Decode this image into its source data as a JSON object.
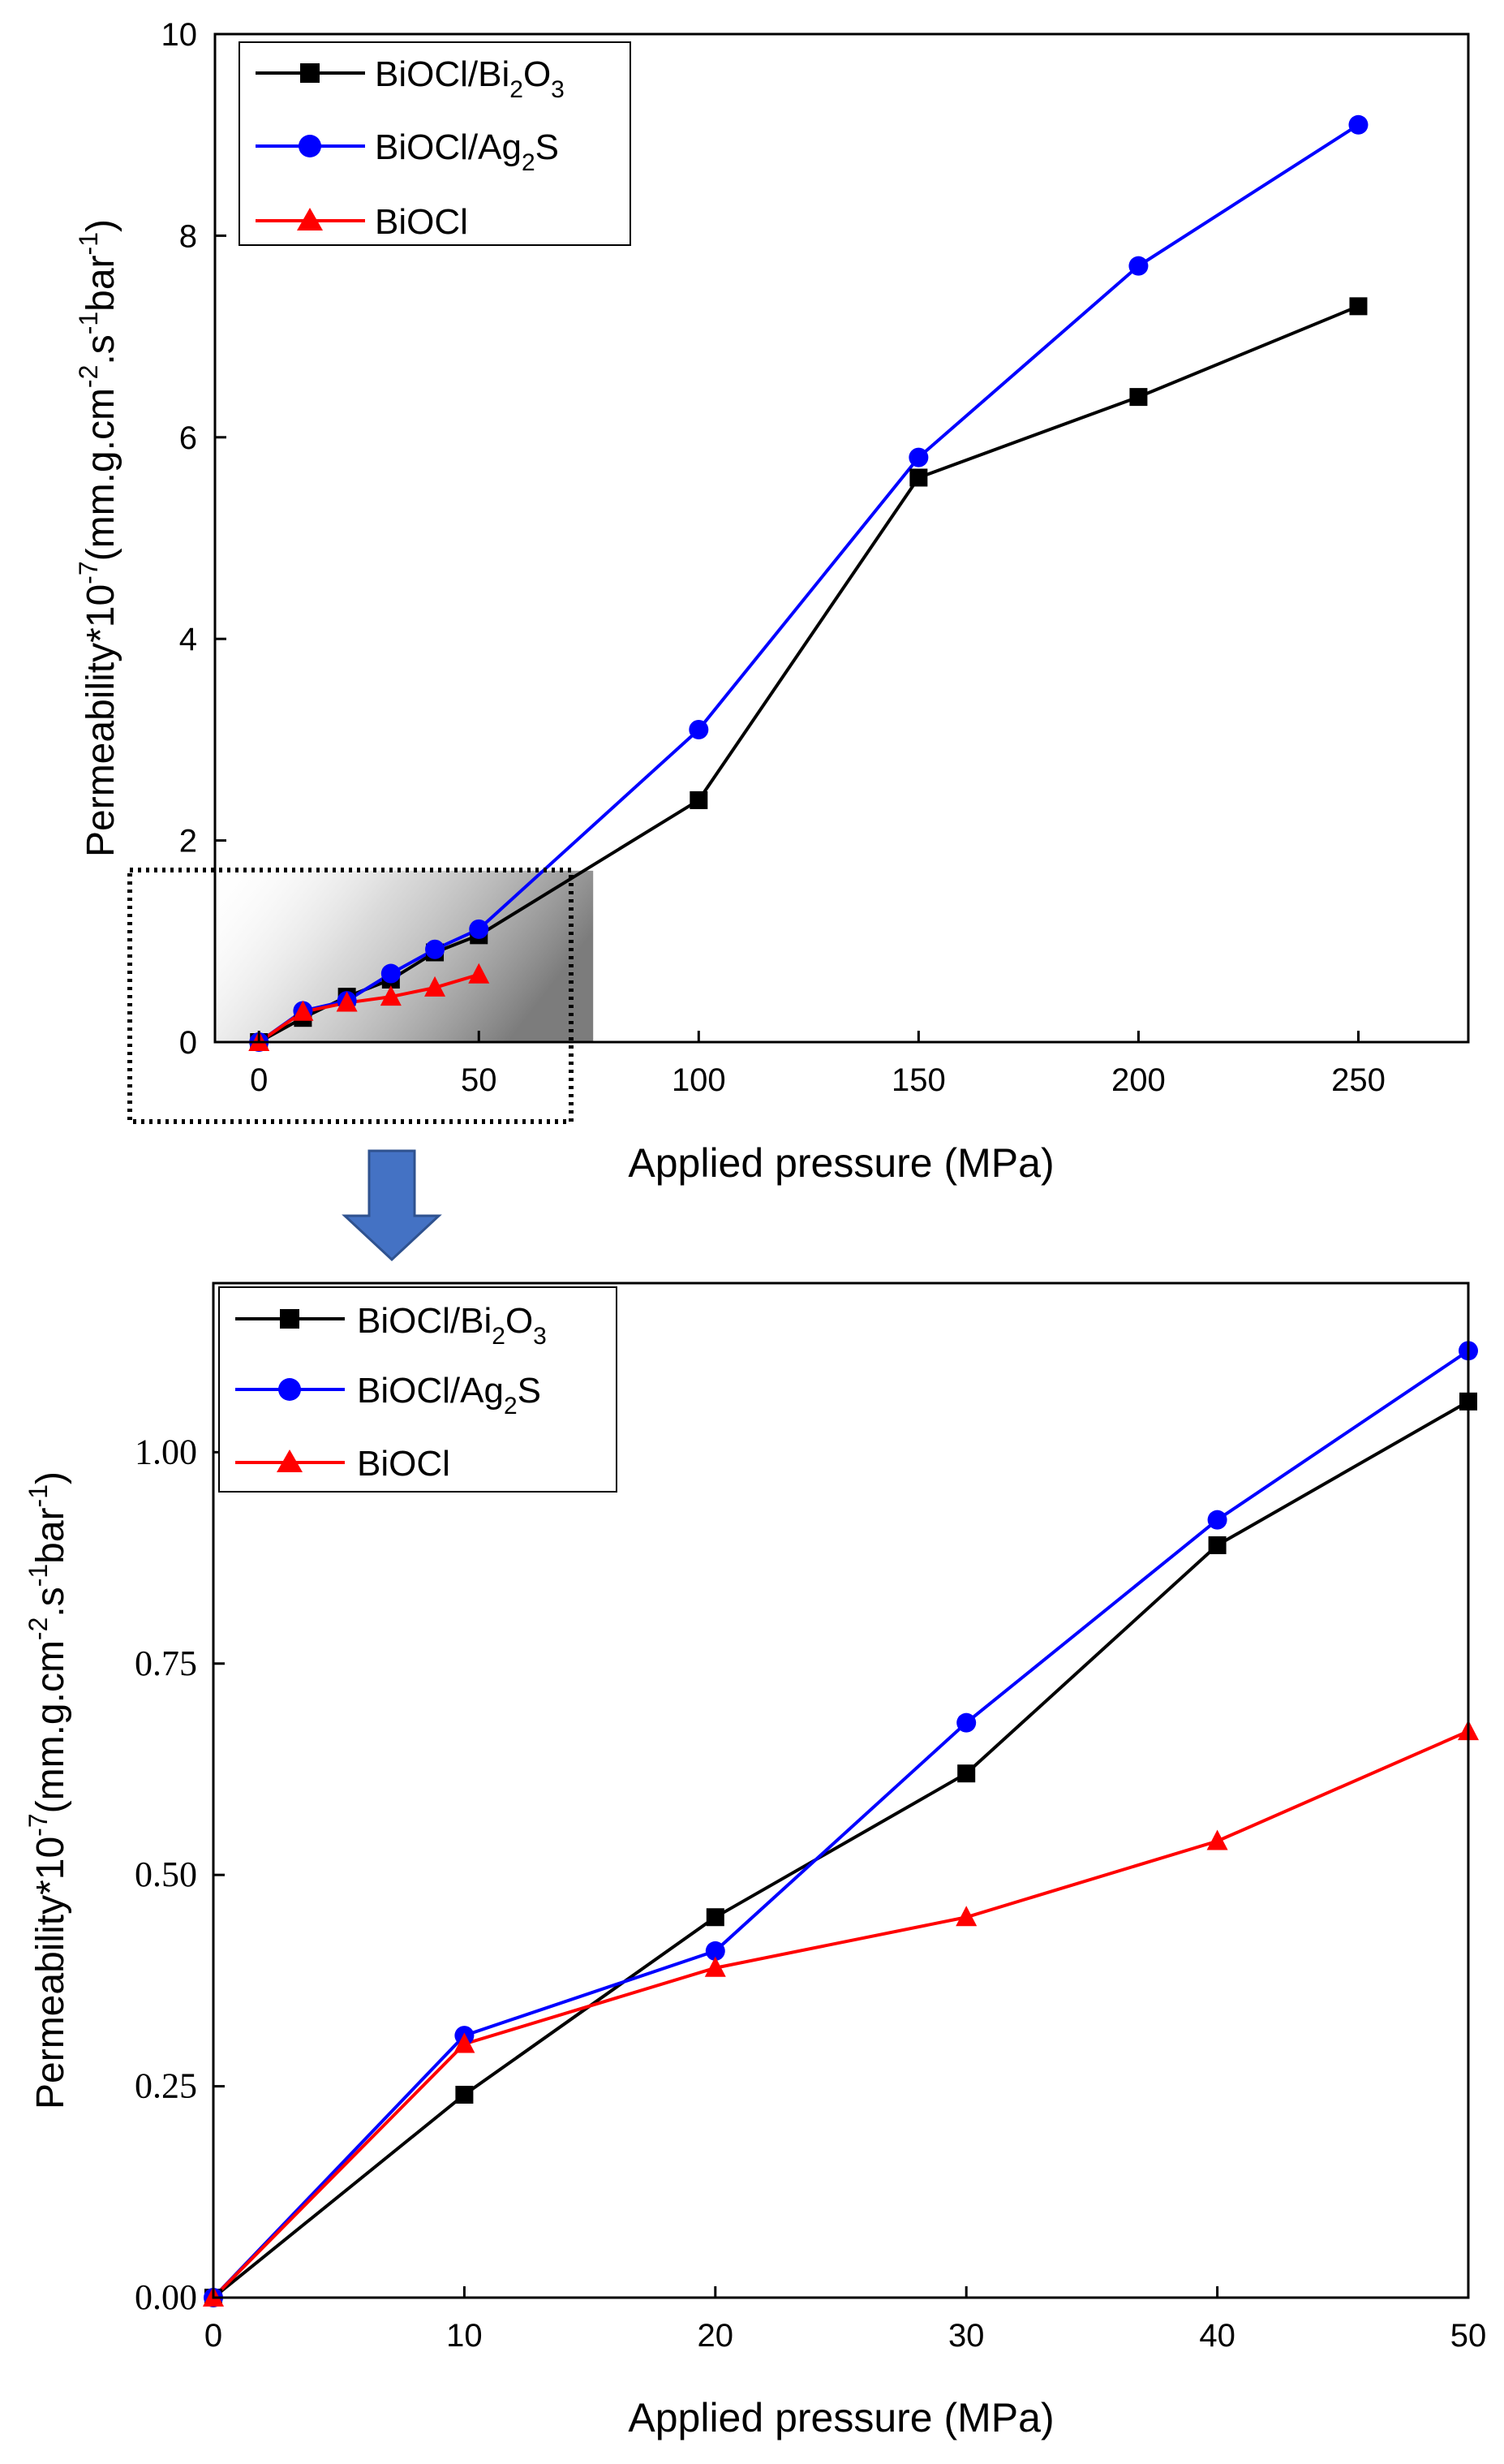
{
  "chart_data": [
    {
      "id": "overview",
      "type": "line",
      "xlabel": "Applied pressure (MPa)",
      "ylabel": {
        "base": "Permeability*10",
        "exp1": "-7",
        "mid1": "(mm.g.cm",
        "exp2": "-2",
        "mid2": ".s",
        "exp3": "-1",
        "mid3": "bar",
        "exp4": "-1",
        "end": ")"
      },
      "xlim": [
        -10,
        275
      ],
      "ylim": [
        0,
        10
      ],
      "xticks": [
        0,
        50,
        100,
        150,
        200,
        250
      ],
      "xtick_labels": [
        "0",
        "50",
        "100",
        "150",
        "200",
        "250"
      ],
      "yticks": [
        0,
        2,
        4,
        6,
        8,
        10
      ],
      "ytick_labels": [
        "0",
        "2",
        "4",
        "6",
        "8",
        "10"
      ],
      "legend_position": "top-left",
      "zoom_region": {
        "x": [
          -22,
          76
        ],
        "y": [
          -0.8,
          1.7
        ]
      },
      "series": [
        {
          "name": "BiOCl/Bi2O3",
          "label_parts": [
            "BiOCl/Bi",
            "2",
            "O",
            "3"
          ],
          "color": "#000000",
          "marker": "square",
          "x": [
            0,
            10,
            20,
            30,
            40,
            50,
            100,
            150,
            200,
            250
          ],
          "y": [
            0,
            0.24,
            0.45,
            0.62,
            0.89,
            1.06,
            2.4,
            5.6,
            6.4,
            7.3
          ]
        },
        {
          "name": "BiOCl/Ag2S",
          "label_parts": [
            "BiOCl/Ag",
            "2",
            "S",
            ""
          ],
          "color": "#0000ff",
          "marker": "circle",
          "x": [
            0,
            10,
            20,
            30,
            40,
            50,
            100,
            150,
            200,
            250
          ],
          "y": [
            0,
            0.31,
            0.41,
            0.68,
            0.92,
            1.12,
            3.1,
            5.8,
            7.7,
            9.1
          ]
        },
        {
          "name": "BiOCl",
          "label_parts": [
            "BiOCl",
            "",
            "",
            ""
          ],
          "color": "#ff0000",
          "marker": "triangle",
          "x": [
            0,
            10,
            20,
            30,
            40,
            50
          ],
          "y": [
            0,
            0.3,
            0.39,
            0.45,
            0.54,
            0.67
          ]
        }
      ]
    },
    {
      "id": "zoom",
      "type": "line",
      "xlabel": "Applied pressure (MPa)",
      "ylabel": {
        "base": "Permeability*10",
        "exp1": "-7",
        "mid1": "(mm.g.cm",
        "exp2": "-2",
        "mid2": ".s",
        "exp3": "-1",
        "mid3": "bar",
        "exp4": "-1",
        "end": ")"
      },
      "xlim": [
        0,
        50
      ],
      "ylim": [
        0,
        1.2
      ],
      "xticks": [
        0,
        10,
        20,
        30,
        40,
        50
      ],
      "xtick_labels": [
        "0",
        "10",
        "20",
        "30",
        "40",
        "50"
      ],
      "yticks": [
        0,
        0.25,
        0.5,
        0.75,
        1.0
      ],
      "ytick_labels": [
        "0.00",
        "0.25",
        "0.50",
        "0.75",
        "1.00"
      ],
      "legend_position": "top-left",
      "series": [
        {
          "name": "BiOCl/Bi2O3",
          "label_parts": [
            "BiOCl/Bi",
            "2",
            "O",
            "3"
          ],
          "color": "#000000",
          "marker": "square",
          "x": [
            0,
            10,
            20,
            30,
            40,
            50
          ],
          "y": [
            0,
            0.24,
            0.45,
            0.62,
            0.89,
            1.06
          ]
        },
        {
          "name": "BiOCl/Ag2S",
          "label_parts": [
            "BiOCl/Ag",
            "2",
            "S",
            ""
          ],
          "color": "#0000ff",
          "marker": "circle",
          "x": [
            0,
            10,
            20,
            30,
            40,
            50
          ],
          "y": [
            0,
            0.31,
            0.41,
            0.68,
            0.92,
            1.12
          ]
        },
        {
          "name": "BiOCl",
          "label_parts": [
            "BiOCl",
            "",
            "",
            ""
          ],
          "color": "#ff0000",
          "marker": "triangle",
          "x": [
            0,
            10,
            20,
            30,
            40,
            50
          ],
          "y": [
            0,
            0.3,
            0.39,
            0.45,
            0.54,
            0.67
          ]
        }
      ]
    }
  ],
  "colors": {
    "arrow": "#4472c4",
    "axis": "#000000",
    "zoom_shade": "#9a9a9a"
  }
}
